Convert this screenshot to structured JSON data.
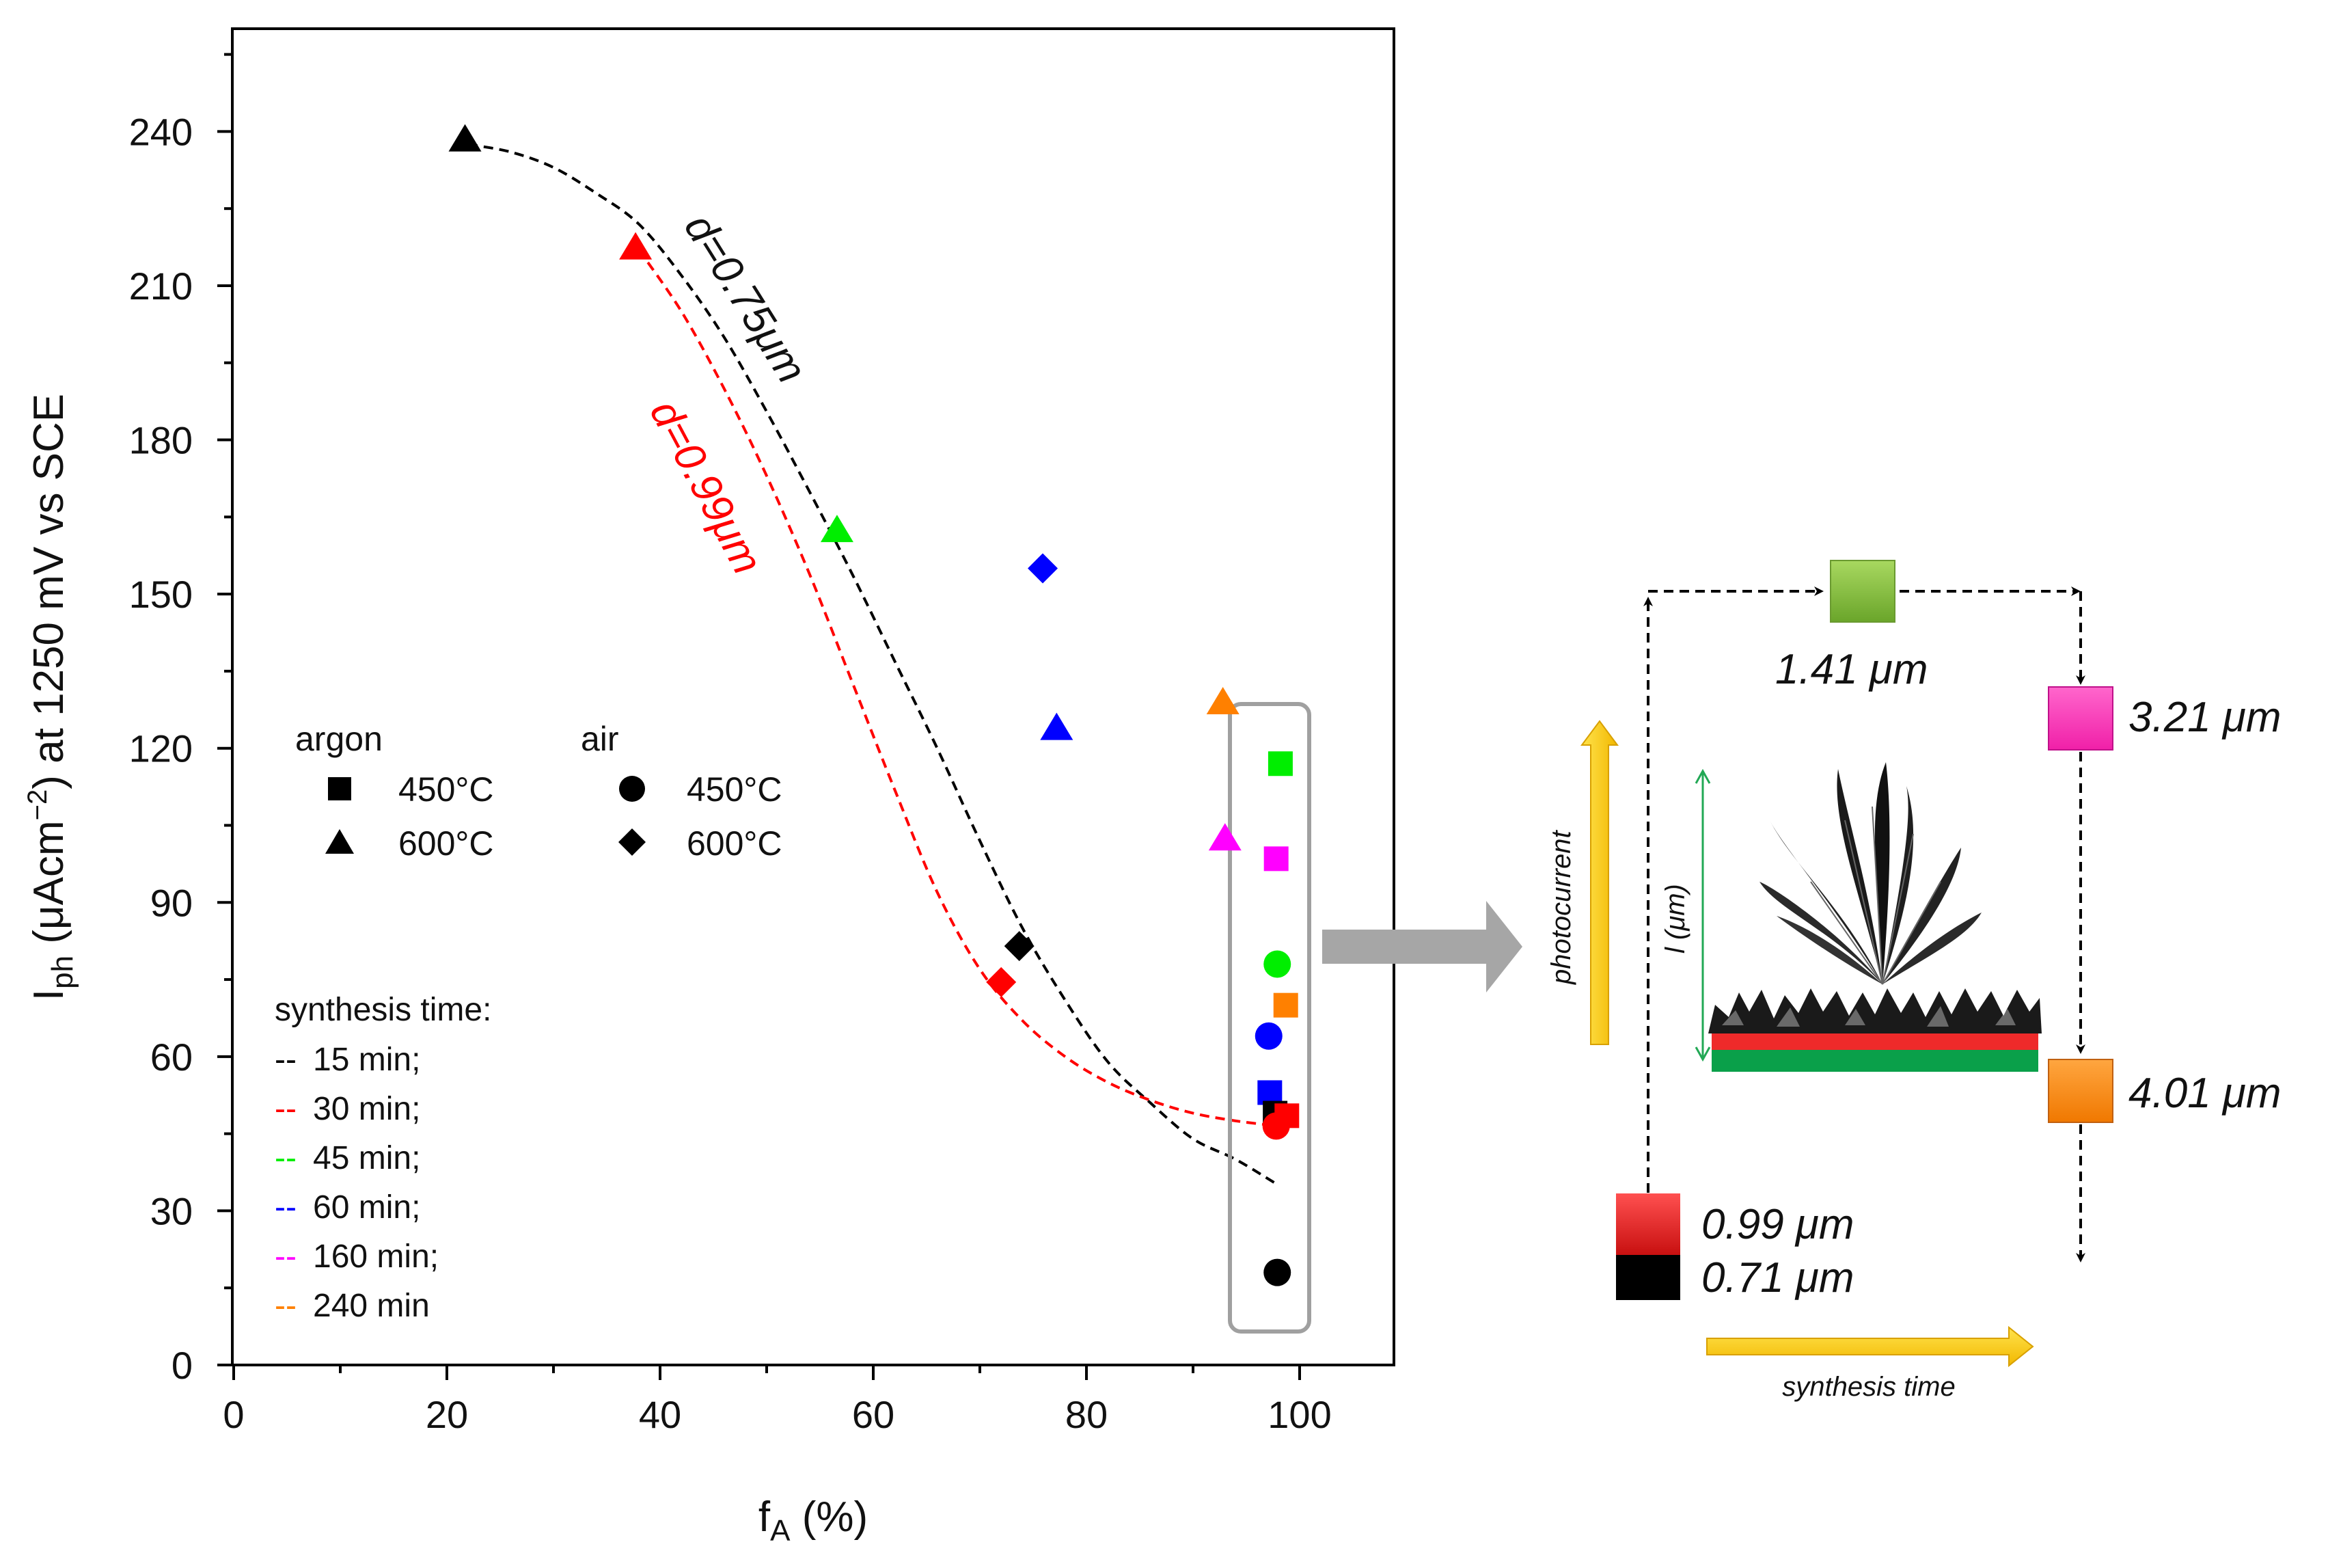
{
  "chart_data": {
    "type": "scatter",
    "xlabel": {
      "main": "f",
      "sub": "A",
      "unit": " (%)"
    },
    "ylabel": {
      "main": "I",
      "sub": "ph",
      "rest1": " (μAcm",
      "sup": "−2",
      "rest2": ") at 1250 mV vs SCE"
    },
    "xlim": [
      0,
      109
    ],
    "ylim": [
      0,
      260
    ],
    "xticks": [
      0,
      20,
      40,
      60,
      80,
      100
    ],
    "yticks": [
      0,
      30,
      60,
      90,
      120,
      150,
      180,
      210,
      240
    ],
    "colors": {
      "15 min": "#000000",
      "30 min": "#ff0000",
      "45 min": "#00ee00",
      "60 min": "#0000ff",
      "160 min": "#ff00ff",
      "240 min": "#ff8000"
    },
    "points": [
      {
        "x": 21.7,
        "y": 238.5,
        "marker": "triangle",
        "series": "15 min"
      },
      {
        "x": 37.7,
        "y": 217.5,
        "marker": "triangle",
        "series": "30 min"
      },
      {
        "x": 56.6,
        "y": 162.5,
        "marker": "triangle",
        "series": "45 min"
      },
      {
        "x": 77.2,
        "y": 124.0,
        "marker": "triangle",
        "series": "60 min"
      },
      {
        "x": 93.0,
        "y": 102.5,
        "marker": "triangle",
        "series": "160 min"
      },
      {
        "x": 92.8,
        "y": 129.0,
        "marker": "triangle",
        "series": "240 min"
      },
      {
        "x": 73.7,
        "y": 81.5,
        "marker": "diamond",
        "series": "15 min"
      },
      {
        "x": 72.0,
        "y": 74.5,
        "marker": "diamond",
        "series": "30 min"
      },
      {
        "x": 75.9,
        "y": 155.0,
        "marker": "diamond",
        "series": "60 min"
      },
      {
        "x": 98.2,
        "y": 117.0,
        "marker": "square",
        "series": "45 min"
      },
      {
        "x": 97.8,
        "y": 98.5,
        "marker": "square",
        "series": "160 min"
      },
      {
        "x": 98.7,
        "y": 70.0,
        "marker": "square",
        "series": "240 min"
      },
      {
        "x": 97.2,
        "y": 53.0,
        "marker": "square",
        "series": "60 min"
      },
      {
        "x": 97.7,
        "y": 49.0,
        "marker": "square",
        "series": "15 min"
      },
      {
        "x": 98.8,
        "y": 48.5,
        "marker": "square",
        "series": "30 min"
      },
      {
        "x": 97.9,
        "y": 78.0,
        "marker": "circle",
        "series": "45 min"
      },
      {
        "x": 97.1,
        "y": 64.0,
        "marker": "circle",
        "series": "60 min"
      },
      {
        "x": 97.9,
        "y": 18.0,
        "marker": "circle",
        "series": "15 min"
      },
      {
        "x": 97.8,
        "y": 46.5,
        "marker": "circle",
        "series": "30 min"
      }
    ],
    "fits": [
      {
        "label": "d=0.75μm",
        "color": "#000000",
        "x": [
          22,
          26,
          30,
          34,
          38,
          42,
          46,
          50,
          54,
          58,
          62,
          66,
          70,
          74,
          78,
          82,
          86,
          90,
          94,
          98
        ],
        "y": [
          237.5,
          236,
          233,
          228,
          222,
          212,
          200,
          185.5,
          170,
          154,
          137,
          120,
          102,
          85,
          71,
          59,
          51,
          44,
          40,
          35
        ]
      },
      {
        "label": "d=0.99μm",
        "color": "#ff0000",
        "x": [
          38,
          42,
          46,
          50,
          54,
          58,
          62,
          66,
          70,
          74,
          78,
          82,
          86,
          90,
          94,
          98
        ],
        "y": [
          217,
          205,
          190,
          173,
          154,
          133,
          112,
          92,
          77,
          67,
          60,
          55,
          51.5,
          49,
          47.5,
          46.5
        ]
      }
    ],
    "legend": {
      "argon": "argon",
      "air": "air",
      "entries": [
        "450°C",
        "600°C",
        "450°C",
        "600°C"
      ],
      "synthesis_title": "synthesis time:",
      "synthesis_items": [
        "15 min;",
        "30 min;",
        "45 min;",
        "60 min;",
        "160 min;",
        "240 min"
      ],
      "dash": "--"
    }
  },
  "schematic": {
    "squares": [
      {
        "label": "1.41 μm",
        "color": "#8cc63f"
      },
      {
        "label": "3.21 μm",
        "color": "#ff40c0"
      },
      {
        "label": "4.01 μm",
        "color": "#ff8c1a"
      },
      {
        "label": "0.99 μm",
        "color": "#e02020"
      },
      {
        "label": "0.71 μm",
        "color": "#000000"
      }
    ],
    "photocurrent_label": "photocurrent",
    "length_label": "l (μm)",
    "synthesis_label": "synthesis time"
  }
}
